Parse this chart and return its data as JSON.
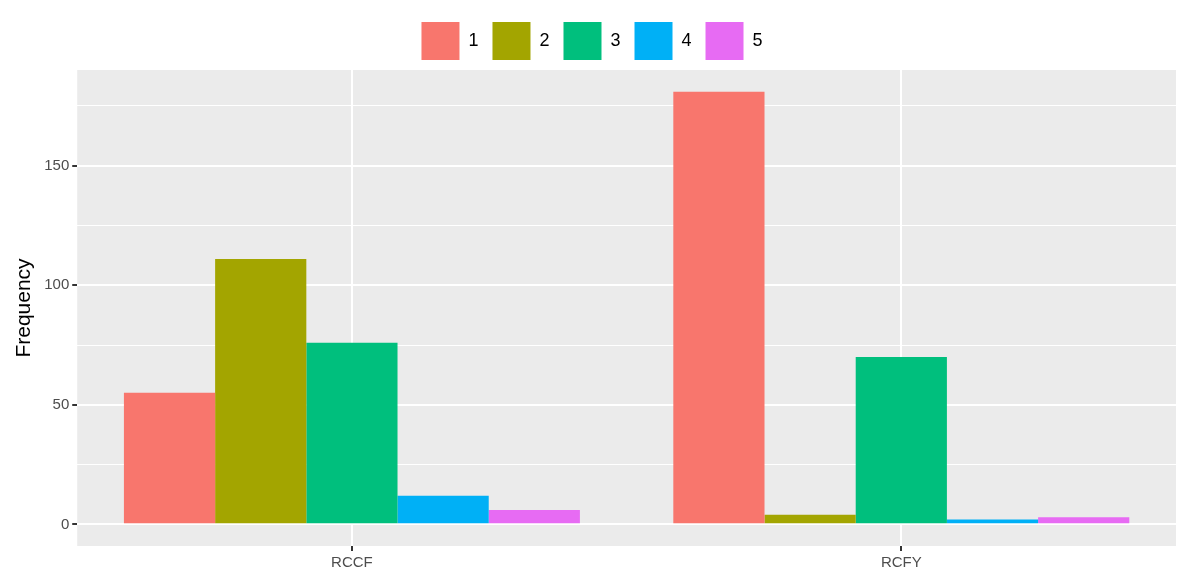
{
  "chart_data": {
    "type": "bar",
    "ylabel": "Frequency",
    "categories": [
      "RCCF",
      "RCFY"
    ],
    "series": [
      {
        "name": "1",
        "color": "#f8766d",
        "values": [
          55,
          181
        ]
      },
      {
        "name": "2",
        "color": "#a3a500",
        "values": [
          111,
          4
        ]
      },
      {
        "name": "3",
        "color": "#00bf7d",
        "values": [
          76,
          70
        ]
      },
      {
        "name": "4",
        "color": "#00b0f6",
        "values": [
          12,
          2
        ]
      },
      {
        "name": "5",
        "color": "#e76bf3",
        "values": [
          6,
          3
        ]
      }
    ],
    "ylim": [
      -9.05,
      190.05
    ],
    "yticks": [
      0,
      {
        "value": 25,
        "label": null
      },
      50,
      {
        "value": 75,
        "label": null
      },
      100,
      {
        "value": 125,
        "label": null
      },
      150,
      {
        "value": 175,
        "label": null
      }
    ],
    "grid": true,
    "legend": "top"
  }
}
